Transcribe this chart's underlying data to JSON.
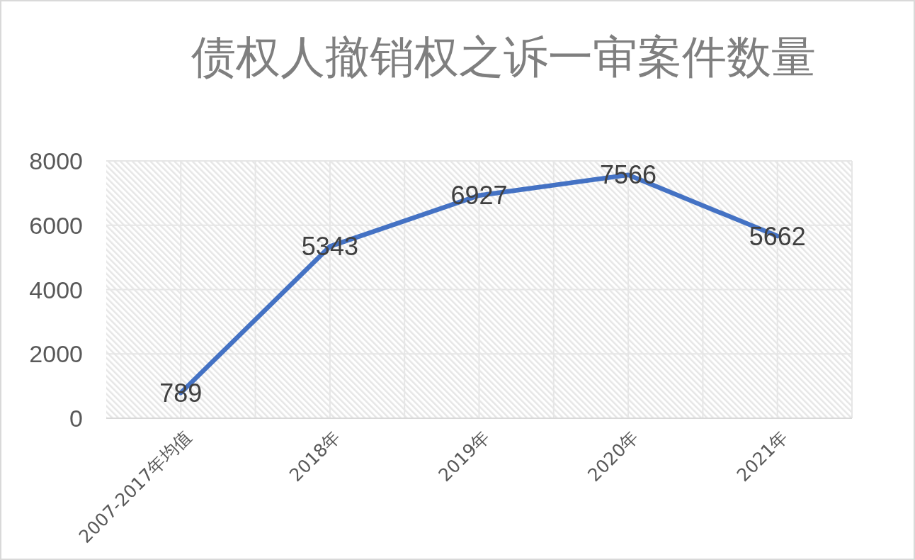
{
  "chart_data": {
    "type": "line",
    "title": "债权人撤销权之诉一审案件数量",
    "categories": [
      "2007-2017年均值",
      "2018年",
      "2019年",
      "2020年",
      "2021年"
    ],
    "series": [
      {
        "color": "#4472c4",
        "values": [
          789,
          5343,
          6927,
          7566,
          5662
        ]
      }
    ],
    "ylim": [
      0,
      8000
    ],
    "yticks": [
      0,
      2000,
      4000,
      6000,
      8000
    ],
    "grid": true,
    "data_labels": true
  }
}
